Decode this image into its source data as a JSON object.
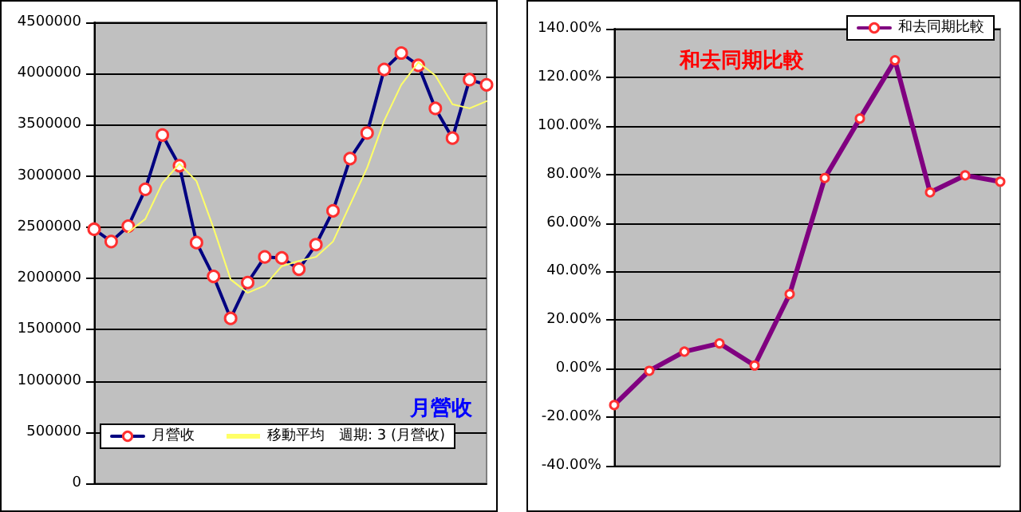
{
  "chart_data": [
    {
      "type": "line",
      "title": "月營收",
      "categories": [
        null,
        null,
        null,
        null,
        null,
        null,
        null,
        null,
        null,
        null,
        null,
        null,
        null,
        null,
        null,
        null,
        null,
        null,
        null,
        null,
        null,
        null,
        null,
        null
      ],
      "series": [
        {
          "name": "月營收",
          "color": "#000080",
          "marker": "circle",
          "values": [
            2480000,
            2360000,
            2510000,
            2870000,
            3400000,
            3100000,
            2350000,
            2020000,
            1610000,
            1960000,
            2210000,
            2200000,
            2090000,
            2330000,
            2660000,
            3170000,
            3420000,
            4040000,
            4200000,
            4080000,
            3660000,
            3370000,
            3940000,
            3890000
          ]
        },
        {
          "name": "移動平均　週期: 3 (月營收)",
          "color": "#ffff66",
          "marker": "none",
          "values": [
            null,
            null,
            2450000,
            2580000,
            2930000,
            3120000,
            2950000,
            2490000,
            1990000,
            1860000,
            1930000,
            2120000,
            2170000,
            2210000,
            2360000,
            2720000,
            3080000,
            3540000,
            3890000,
            4110000,
            3980000,
            3700000,
            3660000,
            3730000
          ]
        }
      ],
      "ylim": [
        0,
        4500000
      ],
      "yticks": [
        0,
        500000,
        1000000,
        1500000,
        2000000,
        2500000,
        3000000,
        3500000,
        4000000,
        4500000
      ],
      "grid": "y",
      "legend": "bottom",
      "line_style": "solid"
    },
    {
      "type": "line",
      "title": "和去同期比較",
      "categories": [
        null,
        null,
        null,
        null,
        null,
        null,
        null,
        null,
        null,
        null,
        null,
        null
      ],
      "series": [
        {
          "name": "和去同期比較",
          "color": "#800080",
          "marker": "circle",
          "values": [
            -15,
            -0.9,
            7,
            10.4,
            1.3,
            30.7,
            78.5,
            103,
            127,
            72.6,
            79.6,
            77
          ]
        }
      ],
      "ylim": [
        -40,
        140
      ],
      "yticks": [
        {
          "value": -40,
          "label": "-40.00%"
        },
        {
          "value": -20,
          "label": "-20.00%"
        },
        {
          "value": 0,
          "label": "0.00%"
        },
        {
          "value": 20,
          "label": "20.00%"
        },
        {
          "value": 40,
          "label": "40.00%"
        },
        {
          "value": 60,
          "label": "60.00%"
        },
        {
          "value": 80,
          "label": "80.00%"
        },
        {
          "value": 100,
          "label": "100.00%"
        },
        {
          "value": 120,
          "label": "120.00%"
        },
        {
          "value": 140,
          "label": "140.00%"
        }
      ],
      "grid": "y",
      "legend": "top right",
      "line_style": "solid"
    }
  ]
}
